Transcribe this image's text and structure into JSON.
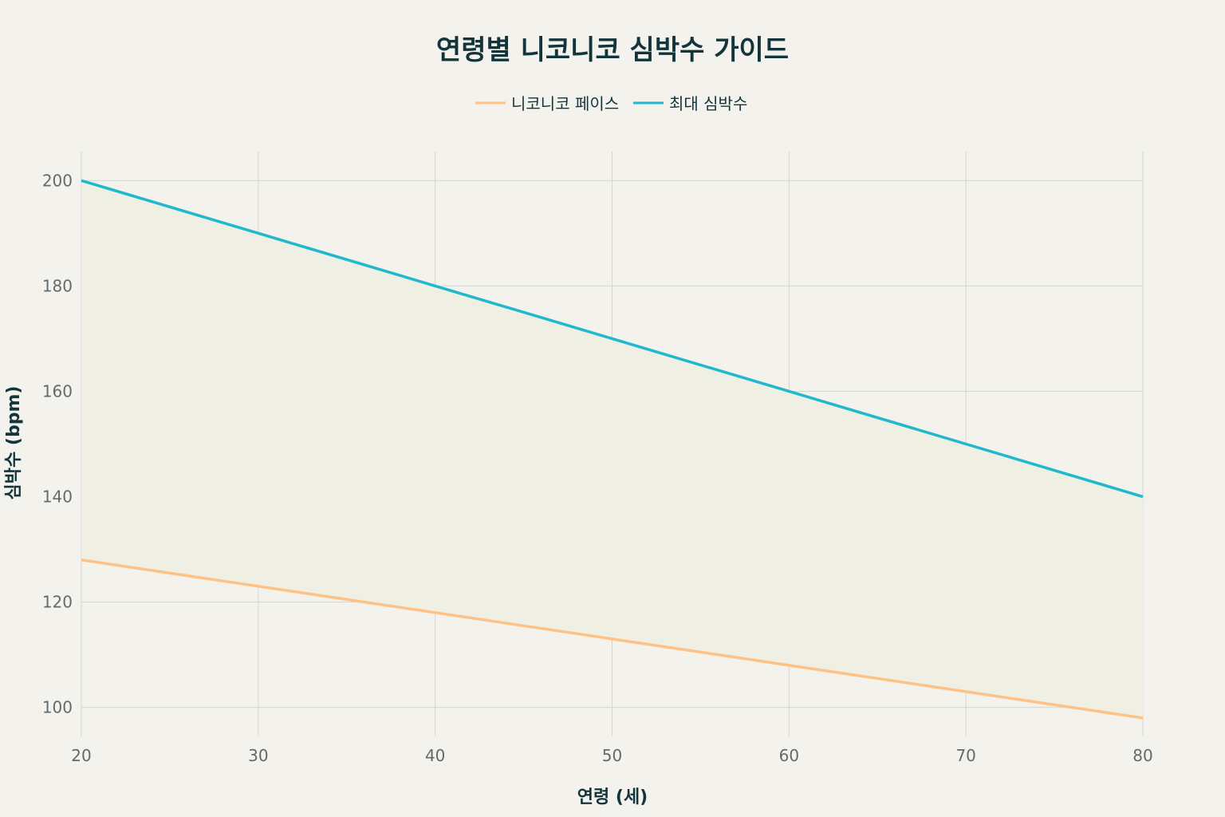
{
  "chart_data": {
    "type": "line",
    "title": "연령별 니코니코 심박수 가이드",
    "xlabel": "연령 (세)",
    "ylabel": "심박수 (bpm)",
    "x": [
      20,
      30,
      40,
      50,
      60,
      70,
      80
    ],
    "xlim": [
      20,
      80
    ],
    "ylim": [
      94.5,
      205.5
    ],
    "xticks": [
      20,
      30,
      40,
      50,
      60,
      70,
      80
    ],
    "yticks": [
      100,
      120,
      140,
      160,
      180,
      200
    ],
    "grid": true,
    "legend_position": "top-center",
    "fill_between_series": true,
    "series": [
      {
        "name": "니코니코 페이스",
        "color": "#ffc185",
        "values": [
          128,
          123,
          118,
          113,
          108,
          103,
          98
        ]
      },
      {
        "name": "최대 심박수",
        "color": "#1fb8cd",
        "values": [
          200,
          190,
          180,
          170,
          160,
          150,
          140
        ]
      }
    ],
    "colors": {
      "background": "#f3f2ec",
      "fill": "#f0efe3",
      "grid": "#d6d6d0",
      "text": "#13343b",
      "tick_text": "#5f6b6f"
    }
  }
}
